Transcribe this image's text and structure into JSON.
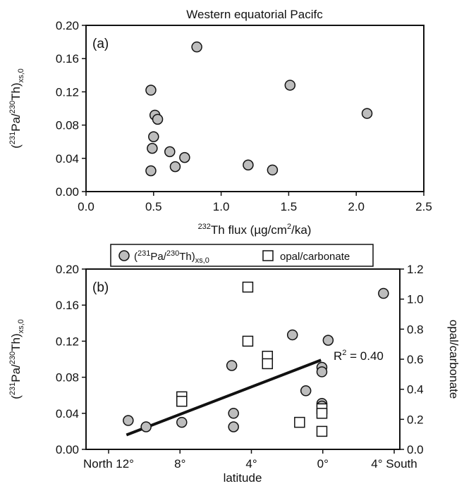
{
  "chart_data": [
    {
      "panel": "(a)",
      "type": "scatter",
      "title": "Western equatorial Pacifc",
      "xlabel": "232Th flux (µg/cm2/ka)",
      "ylabel": "(231Pa/230Th)xs,0",
      "xlim": [
        0,
        2.5
      ],
      "ylim": [
        0,
        0.2
      ],
      "xticks": [
        0.0,
        0.5,
        1.0,
        1.5,
        2.0,
        2.5
      ],
      "xtick_labels": [
        "0.0",
        "0.5",
        "1.0",
        "1.5",
        "2.0",
        "2.5"
      ],
      "yticks": [
        0,
        0.04,
        0.08,
        0.12,
        0.16,
        0.2
      ],
      "ytick_labels": [
        "0.00",
        "0.04",
        "0.08",
        "0.12",
        "0.16",
        "0.20"
      ],
      "grid": false,
      "points": [
        {
          "x": 0.48,
          "y": 0.122
        },
        {
          "x": 0.82,
          "y": 0.174
        },
        {
          "x": 1.51,
          "y": 0.128
        },
        {
          "x": 2.08,
          "y": 0.094
        },
        {
          "x": 0.51,
          "y": 0.092
        },
        {
          "x": 0.53,
          "y": 0.087
        },
        {
          "x": 0.5,
          "y": 0.066
        },
        {
          "x": 0.49,
          "y": 0.052
        },
        {
          "x": 0.62,
          "y": 0.048
        },
        {
          "x": 0.73,
          "y": 0.041
        },
        {
          "x": 0.66,
          "y": 0.03
        },
        {
          "x": 1.2,
          "y": 0.032
        },
        {
          "x": 1.38,
          "y": 0.026
        },
        {
          "x": 0.48,
          "y": 0.025
        }
      ]
    },
    {
      "panel": "(b)",
      "type": "scatter",
      "xlabel": "latitude",
      "ylabel": "(231Pa/230Th)xs,0",
      "y2label": "opal/carbonate",
      "xlim": [
        12,
        -4
      ],
      "ylim": [
        0,
        0.2
      ],
      "y2lim": [
        0,
        1.2
      ],
      "xticks": [
        12,
        8,
        4,
        0,
        -4
      ],
      "xtick_labels": [
        "North 12°",
        "8°",
        "4°",
        "0°",
        "4° South"
      ],
      "yticks": [
        0,
        0.04,
        0.08,
        0.12,
        0.16,
        0.2
      ],
      "ytick_labels": [
        "0.00",
        "0.04",
        "0.08",
        "0.12",
        "0.16",
        "0.20"
      ],
      "y2ticks": [
        0,
        0.2,
        0.4,
        0.6,
        0.8,
        1.0,
        1.2
      ],
      "y2tick_labels": [
        "0.0",
        "0.2",
        "0.4",
        "0.6",
        "0.8",
        "1.0",
        "1.2"
      ],
      "grid": false,
      "legend": {
        "placement": "top",
        "entries": [
          {
            "label": "(231Pa/230Th)xs,0",
            "marker": "circle"
          },
          {
            "label": "opal/carbonate",
            "marker": "square"
          }
        ]
      },
      "series": [
        {
          "name": "(231Pa/230Th)xs,0",
          "axis": "left",
          "marker": "circle",
          "points": [
            {
              "x": 10.9,
              "y": 0.032
            },
            {
              "x": 9.9,
              "y": 0.025
            },
            {
              "x": 7.9,
              "y": 0.03
            },
            {
              "x": 5.1,
              "y": 0.093
            },
            {
              "x": 5.0,
              "y": 0.04
            },
            {
              "x": 5.0,
              "y": 0.025
            },
            {
              "x": 1.7,
              "y": 0.127
            },
            {
              "x": 0.95,
              "y": 0.065
            },
            {
              "x": -0.3,
              "y": 0.121
            },
            {
              "x": 0.05,
              "y": 0.091
            },
            {
              "x": 0.05,
              "y": 0.086
            },
            {
              "x": 0.05,
              "y": 0.051
            },
            {
              "x": 0.05,
              "y": 0.048
            },
            {
              "x": -3.4,
              "y": 0.173
            }
          ]
        },
        {
          "name": "opal/carbonate",
          "axis": "right",
          "marker": "square",
          "points": [
            {
              "x": 4.2,
              "y": 1.08
            },
            {
              "x": 4.2,
              "y": 0.72
            },
            {
              "x": 3.1,
              "y": 0.62
            },
            {
              "x": 3.1,
              "y": 0.57
            },
            {
              "x": 7.9,
              "y": 0.35
            },
            {
              "x": 7.9,
              "y": 0.32
            },
            {
              "x": 1.3,
              "y": 0.18
            },
            {
              "x": 0.05,
              "y": 0.27
            },
            {
              "x": 0.05,
              "y": 0.24
            },
            {
              "x": 0.05,
              "y": 0.12
            }
          ]
        }
      ],
      "trendline": {
        "x": [
          11.0,
          0.1
        ],
        "y": [
          0.016,
          0.099
        ]
      },
      "annotation": "R2 = 0.40"
    }
  ]
}
